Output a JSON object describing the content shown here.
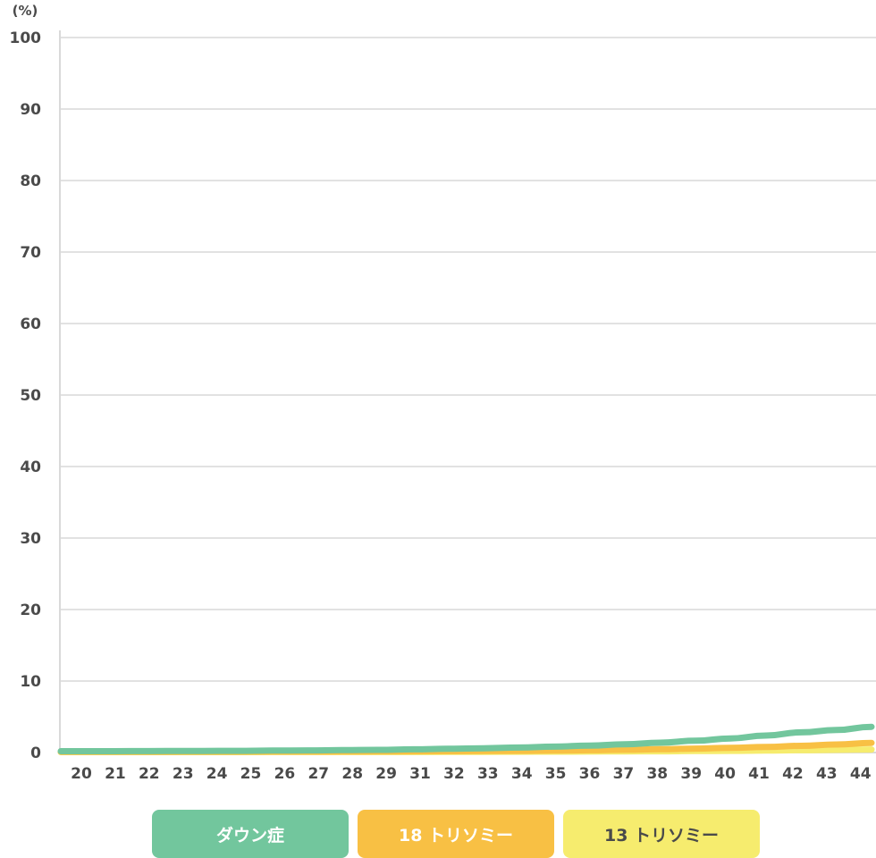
{
  "chart_data": {
    "type": "line",
    "ylabel": "(%)",
    "ylim": [
      0,
      100
    ],
    "yticks": [
      "0",
      "10",
      "20",
      "30",
      "40",
      "50",
      "60",
      "70",
      "80",
      "90",
      "100"
    ],
    "x": [
      "20",
      "21",
      "22",
      "23",
      "24",
      "25",
      "26",
      "27",
      "28",
      "29",
      "31",
      "32",
      "33",
      "34",
      "35",
      "36",
      "37",
      "38",
      "39",
      "40",
      "41",
      "42",
      "43",
      "44"
    ],
    "grid": true,
    "legend_position": "bottom",
    "series": [
      {
        "name": "ダウン症",
        "color": "#72c69d",
        "text_color": "#ffffff",
        "values": [
          0.19,
          0.19,
          0.2,
          0.21,
          0.22,
          0.24,
          0.27,
          0.3,
          0.34,
          0.38,
          0.45,
          0.52,
          0.6,
          0.7,
          0.82,
          0.97,
          1.16,
          1.38,
          1.65,
          1.98,
          2.37,
          2.82,
          3.15,
          3.6
        ]
      },
      {
        "name": "18 トリソミー",
        "color": "#f8c044",
        "text_color": "#ffffff",
        "values": [
          0.1,
          0.1,
          0.1,
          0.1,
          0.11,
          0.11,
          0.12,
          0.13,
          0.14,
          0.15,
          0.17,
          0.19,
          0.21,
          0.24,
          0.28,
          0.33,
          0.39,
          0.46,
          0.55,
          0.66,
          0.79,
          0.94,
          1.12,
          1.35
        ]
      },
      {
        "name": "13 トリソミー",
        "color": "#f6ec6e",
        "text_color": "#4a4a4a",
        "values": [
          0.06,
          0.06,
          0.06,
          0.06,
          0.06,
          0.06,
          0.07,
          0.07,
          0.07,
          0.08,
          0.08,
          0.09,
          0.1,
          0.11,
          0.12,
          0.14,
          0.16,
          0.18,
          0.21,
          0.24,
          0.28,
          0.32,
          0.37,
          0.43
        ]
      }
    ]
  }
}
